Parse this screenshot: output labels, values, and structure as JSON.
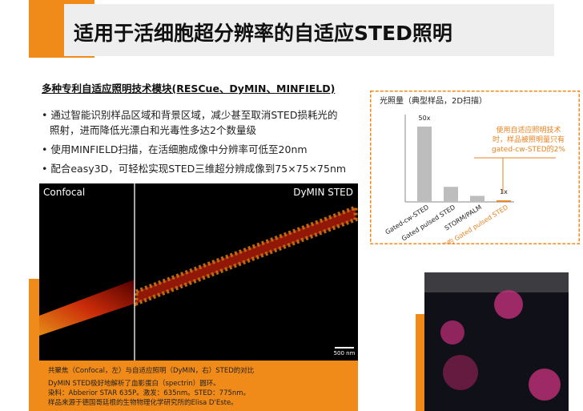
{
  "slide": {
    "title": "适用于活细胞超分辨率的自适应STED照明",
    "subtitle": "多种专利自适应照明技术模块(RESCue、DyMIN、MINFIELD)",
    "bullets": [
      "通过智能识别样品区域和背景区域，减少甚至取消STED损耗光的",
      "照射，进而降低光漂白和光毒性多达2个数量级",
      "使用MINFIELD扫描，在活细胞成像中分辨率可低至20nm",
      "配合easy3D，可轻松实现STED三维超分辨成像到75×75×75nm"
    ],
    "image_labels": {
      "left": "Confocal",
      "right": "DyMIN STED",
      "scale": "500 nm"
    },
    "caption": [
      "共聚焦（Confocal，左）与自适应照明（DyMIN，右）STED的对比",
      "DyMIN STED极好地解析了血影蛋白（spectrin）圆环。",
      "染料：Abberior STAR 635P。激发：635nm。STED：775nm。",
      "样品来源于德国哥廷根的生物物理化学研究所的Elisa D'Este。"
    ]
  },
  "chart_data": {
    "type": "bar",
    "title": "光照量（典型样品，2D扫描）",
    "categories": [
      "Gated-cw-STED",
      "Gated pulsed STED",
      "STORM/PALM",
      "带自适应照明技术的 Gated pulsed STED"
    ],
    "values": [
      50,
      10,
      4,
      1
    ],
    "value_labels": [
      "50x",
      null,
      null,
      "1x"
    ],
    "colors": [
      "#bdbdbd",
      "#bdbdbd",
      "#bdbdbd",
      "#e8821e"
    ],
    "annotation": [
      "使用自适应照明技术",
      "时，样品被照明量只有",
      "gated-cw-STED的2%"
    ]
  }
}
